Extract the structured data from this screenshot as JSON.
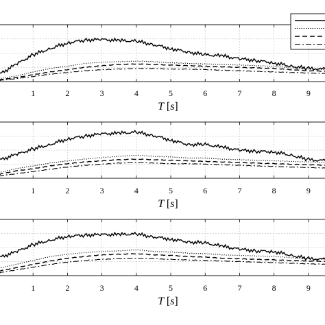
{
  "chart_data": [
    {
      "type": "line",
      "xlabel": "T [s]",
      "xlim": [
        0,
        9.6
      ],
      "ylim": [
        0,
        1
      ],
      "xticks": [
        "1",
        "2",
        "3",
        "4",
        "5",
        "6",
        "7",
        "8",
        "9"
      ],
      "grid": true,
      "legend": "top-right",
      "series": [
        {
          "style": "solid",
          "x": [
            0,
            0.5,
            1,
            1.5,
            2,
            2.5,
            3,
            3.5,
            4,
            4.5,
            5,
            5.5,
            6,
            6.5,
            7,
            7.5,
            8,
            8.5,
            9,
            9.6
          ],
          "y": [
            0.12,
            0.3,
            0.47,
            0.58,
            0.68,
            0.73,
            0.74,
            0.72,
            0.71,
            0.65,
            0.58,
            0.52,
            0.47,
            0.45,
            0.4,
            0.37,
            0.33,
            0.27,
            0.23,
            0.22
          ]
        },
        {
          "style": "dotted",
          "x": [
            0,
            0.5,
            1,
            1.5,
            2,
            2.5,
            3,
            3.5,
            4,
            4.5,
            5,
            5.5,
            6,
            6.5,
            7,
            7.5,
            8,
            8.5,
            9,
            9.6
          ],
          "y": [
            0.05,
            0.1,
            0.17,
            0.23,
            0.27,
            0.32,
            0.34,
            0.35,
            0.36,
            0.35,
            0.33,
            0.32,
            0.31,
            0.3,
            0.29,
            0.28,
            0.27,
            0.24,
            0.22,
            0.21
          ]
        },
        {
          "style": "dashed",
          "x": [
            0,
            0.5,
            1,
            1.5,
            2,
            2.5,
            3,
            3.5,
            4,
            4.5,
            5,
            5.5,
            6,
            6.5,
            7,
            7.5,
            8,
            8.5,
            9,
            9.6
          ],
          "y": [
            0.03,
            0.07,
            0.12,
            0.17,
            0.21,
            0.25,
            0.28,
            0.3,
            0.31,
            0.3,
            0.29,
            0.28,
            0.27,
            0.26,
            0.25,
            0.24,
            0.23,
            0.21,
            0.19,
            0.18
          ]
        },
        {
          "style": "dashdot",
          "x": [
            0,
            0.5,
            1,
            1.5,
            2,
            2.5,
            3,
            3.5,
            4,
            4.5,
            5,
            5.5,
            6,
            6.5,
            7,
            7.5,
            8,
            8.5,
            9,
            9.6
          ],
          "y": [
            0.02,
            0.05,
            0.09,
            0.13,
            0.16,
            0.19,
            0.21,
            0.22,
            0.23,
            0.23,
            0.22,
            0.22,
            0.21,
            0.2,
            0.19,
            0.18,
            0.17,
            0.16,
            0.15,
            0.14
          ]
        }
      ]
    },
    {
      "type": "line",
      "xlabel": "T [s]",
      "xlim": [
        0,
        9.6
      ],
      "ylim": [
        0,
        1
      ],
      "xticks": [
        "1",
        "2",
        "3",
        "4",
        "5",
        "6",
        "7",
        "8",
        "9"
      ],
      "grid": true,
      "series": [
        {
          "style": "solid",
          "x": [
            0,
            0.5,
            1,
            1.5,
            2,
            2.5,
            3,
            3.5,
            4,
            4.5,
            5,
            5.5,
            6,
            6.5,
            7,
            7.5,
            8,
            8.5,
            9,
            9.6
          ],
          "y": [
            0.32,
            0.42,
            0.52,
            0.6,
            0.7,
            0.75,
            0.79,
            0.8,
            0.82,
            0.76,
            0.68,
            0.6,
            0.6,
            0.55,
            0.5,
            0.48,
            0.47,
            0.41,
            0.33,
            0.31
          ]
        },
        {
          "style": "dotted",
          "x": [
            0,
            0.5,
            1,
            1.5,
            2,
            2.5,
            3,
            3.5,
            4,
            4.5,
            5,
            5.5,
            6,
            6.5,
            7,
            7.5,
            8,
            8.5,
            9,
            9.6
          ],
          "y": [
            0.1,
            0.17,
            0.22,
            0.27,
            0.31,
            0.34,
            0.37,
            0.39,
            0.41,
            0.39,
            0.38,
            0.36,
            0.36,
            0.34,
            0.33,
            0.32,
            0.31,
            0.3,
            0.29,
            0.28
          ]
        },
        {
          "style": "dashed",
          "x": [
            0,
            0.5,
            1,
            1.5,
            2,
            2.5,
            3,
            3.5,
            4,
            4.5,
            5,
            5.5,
            6,
            6.5,
            7,
            7.5,
            8,
            8.5,
            9,
            9.6
          ],
          "y": [
            0.07,
            0.13,
            0.17,
            0.22,
            0.26,
            0.29,
            0.31,
            0.33,
            0.34,
            0.33,
            0.32,
            0.31,
            0.3,
            0.29,
            0.28,
            0.27,
            0.26,
            0.25,
            0.24,
            0.23
          ]
        },
        {
          "style": "dashdot",
          "x": [
            0,
            0.5,
            1,
            1.5,
            2,
            2.5,
            3,
            3.5,
            4,
            4.5,
            5,
            5.5,
            6,
            6.5,
            7,
            7.5,
            8,
            8.5,
            9,
            9.6
          ],
          "y": [
            0.04,
            0.08,
            0.12,
            0.16,
            0.2,
            0.23,
            0.25,
            0.27,
            0.28,
            0.27,
            0.26,
            0.26,
            0.25,
            0.24,
            0.23,
            0.22,
            0.21,
            0.2,
            0.19,
            0.18
          ]
        }
      ]
    },
    {
      "type": "line",
      "xlabel": "T [s]",
      "xlim": [
        0,
        9.6
      ],
      "ylim": [
        0,
        1
      ],
      "xticks": [
        "1",
        "2",
        "3",
        "4",
        "5",
        "6",
        "7",
        "8",
        "9"
      ],
      "grid": true,
      "series": [
        {
          "style": "solid",
          "x": [
            0,
            0.5,
            1,
            1.5,
            2,
            2.5,
            3,
            3.5,
            4,
            4.5,
            5,
            5.5,
            6,
            6.5,
            7,
            7.5,
            8,
            8.5,
            9,
            9.6
          ],
          "y": [
            0.32,
            0.42,
            0.55,
            0.63,
            0.7,
            0.72,
            0.73,
            0.73,
            0.74,
            0.69,
            0.65,
            0.6,
            0.58,
            0.52,
            0.47,
            0.44,
            0.43,
            0.36,
            0.3,
            0.29
          ]
        },
        {
          "style": "dotted",
          "x": [
            0,
            0.5,
            1,
            1.5,
            2,
            2.5,
            3,
            3.5,
            4,
            4.5,
            5,
            5.5,
            6,
            6.5,
            7,
            7.5,
            8,
            8.5,
            9,
            9.6
          ],
          "y": [
            0.13,
            0.2,
            0.27,
            0.34,
            0.38,
            0.41,
            0.43,
            0.44,
            0.46,
            0.43,
            0.42,
            0.4,
            0.39,
            0.37,
            0.36,
            0.35,
            0.34,
            0.32,
            0.3,
            0.29
          ]
        },
        {
          "style": "dashed",
          "x": [
            0,
            0.5,
            1,
            1.5,
            2,
            2.5,
            3,
            3.5,
            4,
            4.5,
            5,
            5.5,
            6,
            6.5,
            7,
            7.5,
            8,
            8.5,
            9,
            9.6
          ],
          "y": [
            0.08,
            0.14,
            0.2,
            0.26,
            0.31,
            0.34,
            0.37,
            0.38,
            0.39,
            0.37,
            0.36,
            0.34,
            0.33,
            0.31,
            0.3,
            0.29,
            0.28,
            0.27,
            0.26,
            0.25
          ]
        },
        {
          "style": "dashdot",
          "x": [
            0,
            0.5,
            1,
            1.5,
            2,
            2.5,
            3,
            3.5,
            4,
            4.5,
            5,
            5.5,
            6,
            6.5,
            7,
            7.5,
            8,
            8.5,
            9,
            9.6
          ],
          "y": [
            0.05,
            0.1,
            0.15,
            0.2,
            0.24,
            0.27,
            0.29,
            0.3,
            0.31,
            0.3,
            0.29,
            0.28,
            0.27,
            0.26,
            0.25,
            0.24,
            0.23,
            0.22,
            0.21,
            0.2
          ]
        }
      ]
    }
  ]
}
